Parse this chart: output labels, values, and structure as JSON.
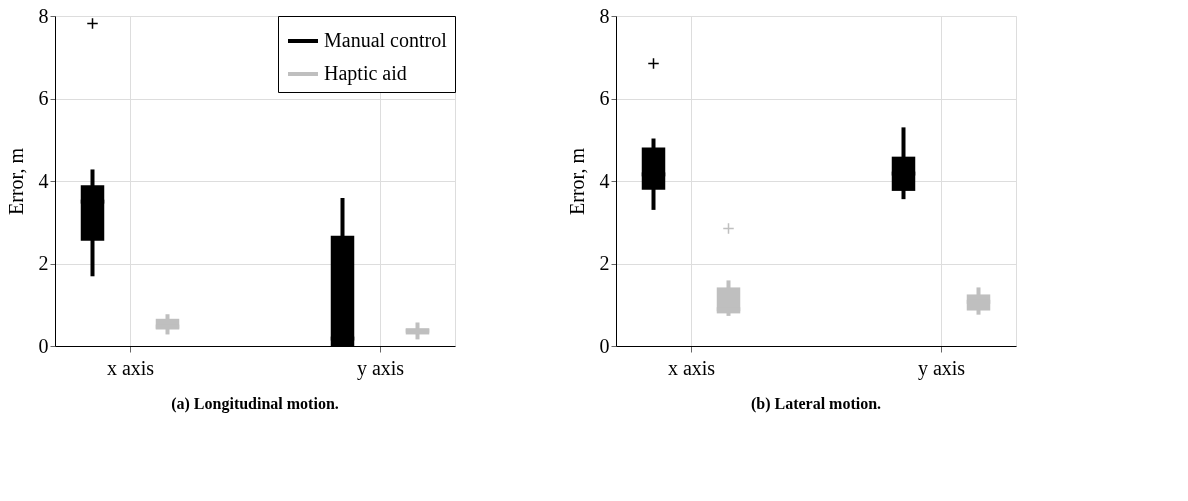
{
  "chart_data": [
    {
      "type": "box",
      "title": "(a) Longitudinal motion.",
      "ylabel": "Error, m",
      "categories": [
        "x axis",
        "y axis"
      ],
      "ylim": [
        0,
        8
      ],
      "yticks": [
        0,
        2,
        4,
        6,
        8
      ],
      "grid": true,
      "legend": "top right",
      "marker": "cross",
      "series": [
        {
          "name": "Manual control",
          "color": "#000000",
          "boxes": [
            {
              "low": 1.69,
              "q1": 2.55,
              "median": 3.5,
              "q3": 3.9,
              "high": 4.28,
              "outliers": [
                7.82
              ]
            },
            {
              "low": 0.0,
              "q1": 0.0,
              "median": 0.18,
              "q3": 2.67,
              "high": 3.59
            }
          ]
        },
        {
          "name": "Haptic aid",
          "color": "#bfbfbf",
          "boxes": [
            {
              "low": 0.28,
              "q1": 0.4,
              "median": 0.47,
              "q3": 0.66,
              "high": 0.77
            },
            {
              "low": 0.16,
              "q1": 0.28,
              "median": 0.37,
              "q3": 0.43,
              "high": 0.57
            }
          ]
        }
      ]
    },
    {
      "type": "box",
      "title": "(b) Lateral motion.",
      "ylabel": "Error, m",
      "categories": [
        "x axis",
        "y axis"
      ],
      "ylim": [
        0,
        8
      ],
      "yticks": [
        0,
        2,
        4,
        6,
        8
      ],
      "grid": true,
      "legend": false,
      "marker": "cross",
      "series": [
        {
          "color": "#000000",
          "boxes": [
            {
              "low": 3.3,
              "q1": 3.79,
              "median": 4.16,
              "q3": 4.81,
              "high": 5.03,
              "outliers": [
                6.85
              ]
            },
            {
              "low": 3.56,
              "q1": 3.76,
              "median": 4.18,
              "q3": 4.59,
              "high": 5.3
            }
          ]
        },
        {
          "color": "#bfbfbf",
          "boxes": [
            {
              "low": 0.73,
              "q1": 0.79,
              "median": 0.89,
              "q3": 1.42,
              "high": 1.59,
              "outliers": [
                2.85
              ]
            },
            {
              "low": 0.76,
              "q1": 0.86,
              "median": 1.07,
              "q3": 1.25,
              "high": 1.42
            }
          ]
        }
      ]
    }
  ]
}
